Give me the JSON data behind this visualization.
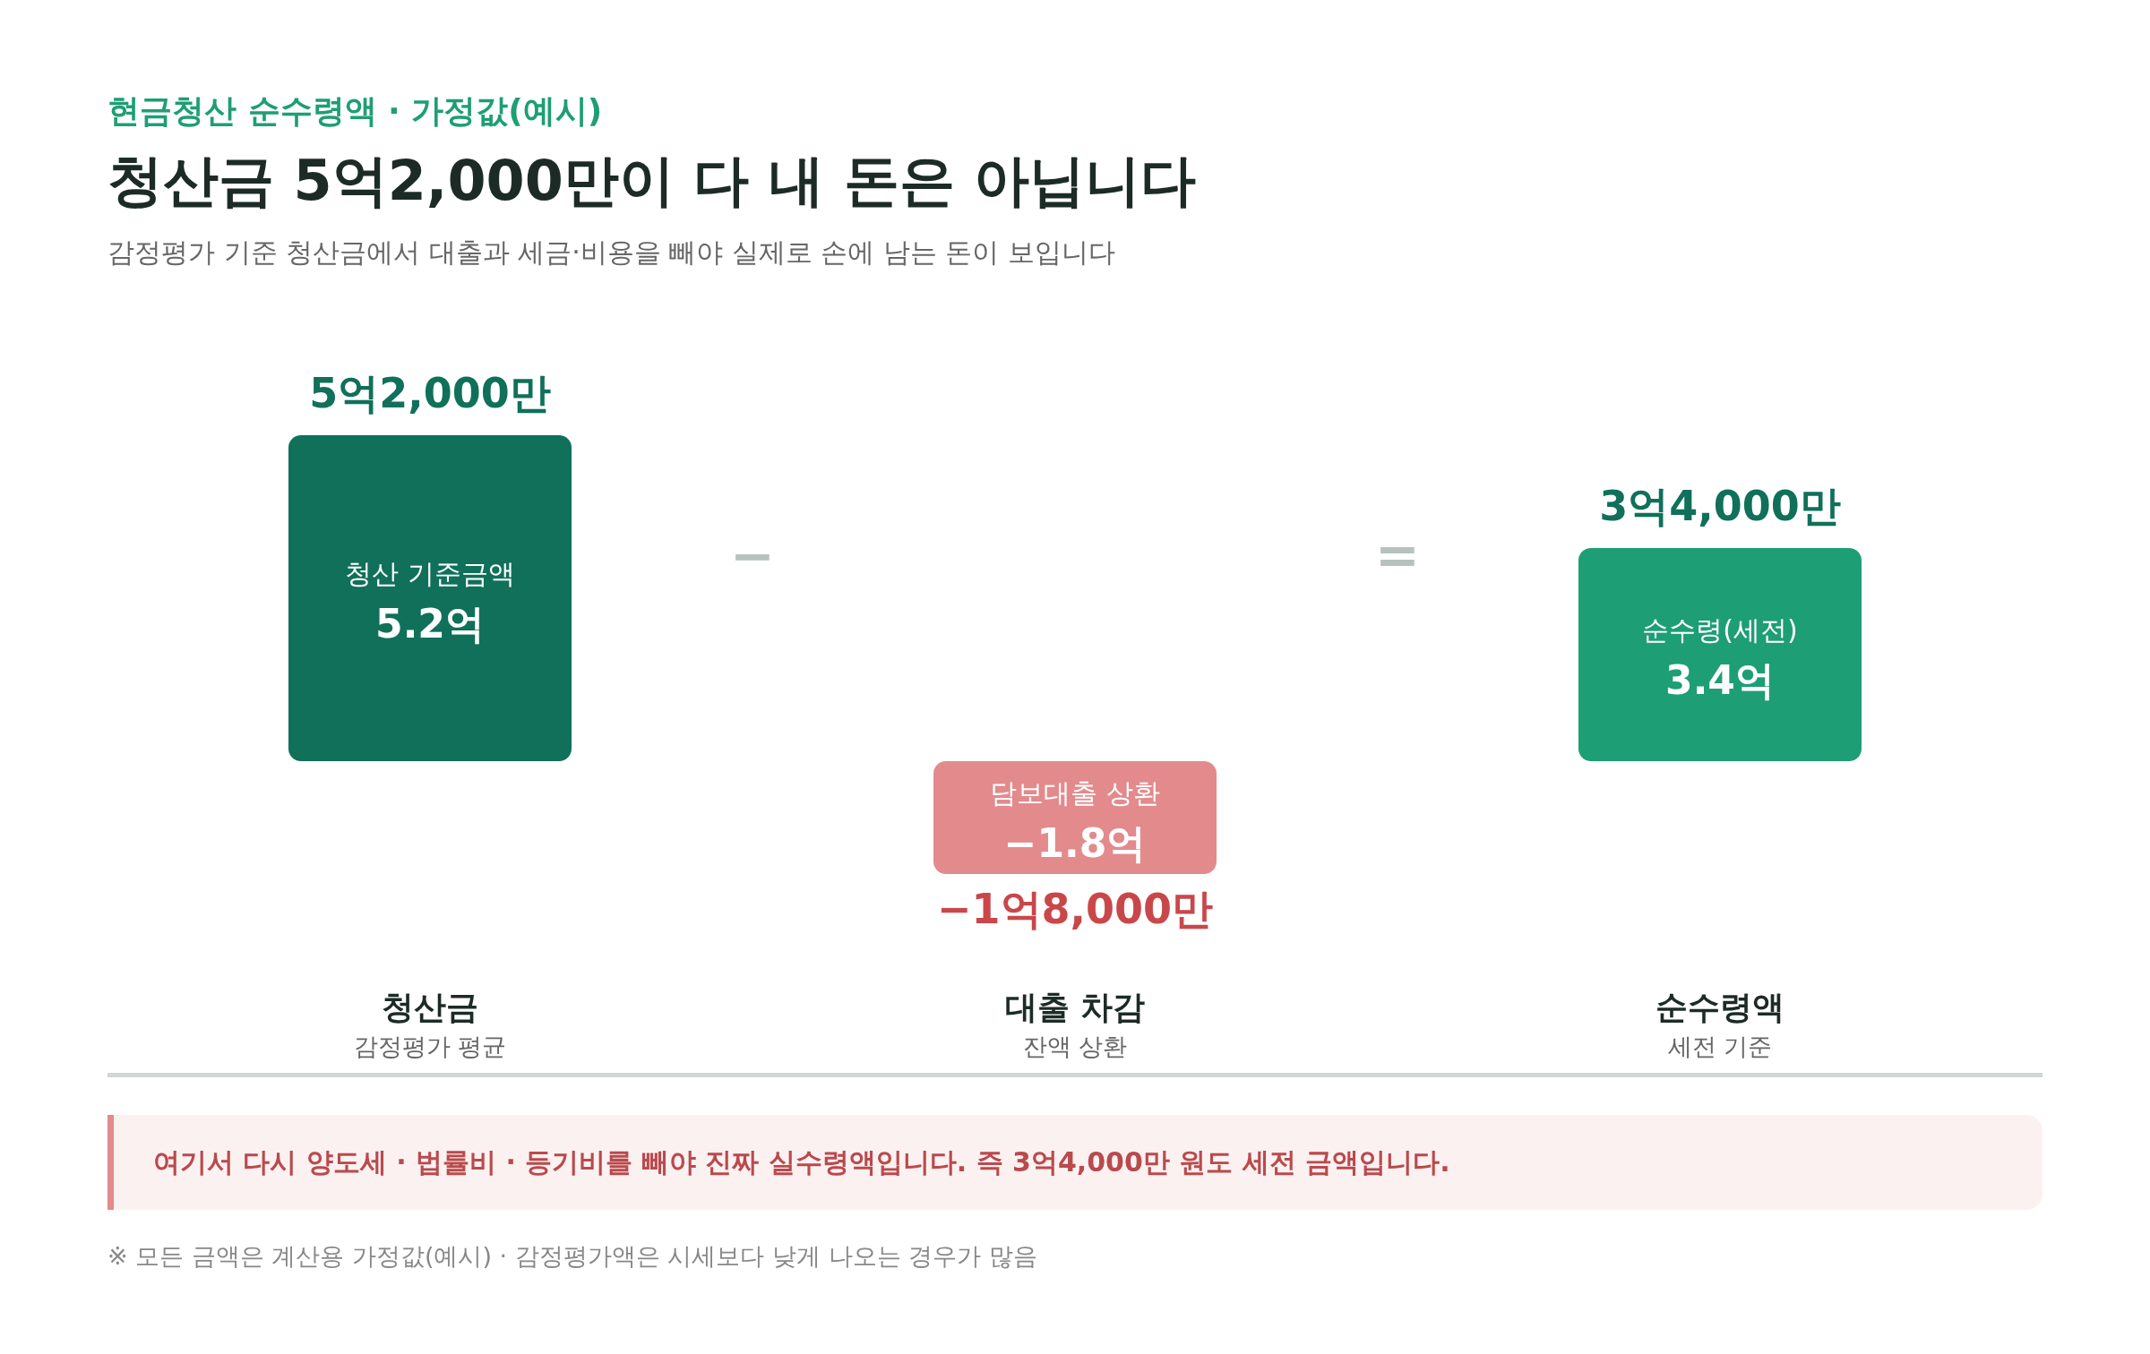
{
  "chart_data": {
    "type": "bar",
    "title": "청산금 5억2,000만이 다 내 돈은 아닙니다",
    "subtitle": "감정평가 기준 청산금에서 대출과 세금·비용을 빼야 실제로 손에 남는 돈이 보입니다",
    "categories": [
      "청산금",
      "대출 차감",
      "순수령액"
    ],
    "values": [
      5.2,
      -1.8,
      3.4
    ],
    "colors": [
      "#10705a",
      "#e38a8d",
      "#1e9e74"
    ],
    "value_labels": [
      "청산 기준금액\n5.2억",
      "담보대출 상환\n−1.8억",
      "순수령(세전)\n3.4억"
    ],
    "annotations": [
      "현금청산 순수령액 · 가정값(예시)",
      "여기서 다시 양도세 · 법률비 · 등기비를 빼야 진짜 실수령액입니다. 즉 3억4,000만 원도 세전 금액입니다.",
      "※ 모든 금액은 계산용 가정값(예시) · 감정평가액은 시세보다 낮게 나오는 경우가 많음",
      "−",
      "=",
      {
        "text": "5억2,000만",
        "x": "청산금",
        "y": 5.2
      },
      {
        "text": "−1억8,000만",
        "x": "대출 차감",
        "y": -1.8
      },
      {
        "text": "3억4,000만",
        "x": "순수령액",
        "y": 3.4
      },
      "감정평가 평균",
      "잔액 상환",
      "세전 기준"
    ]
  }
}
